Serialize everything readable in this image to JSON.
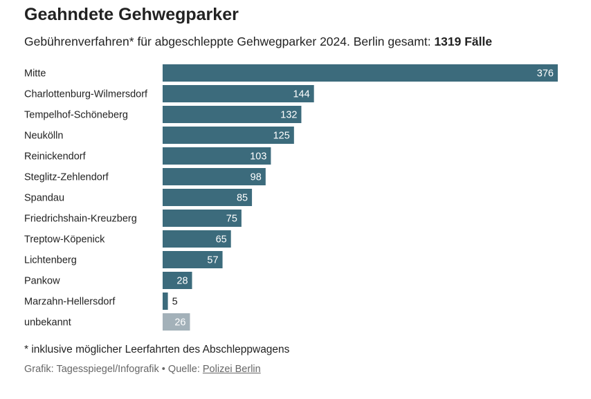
{
  "chart_data": {
    "type": "bar",
    "orientation": "horizontal",
    "title": "Geahndete Gehwegparker",
    "subtitle_prefix": "Gebührenverfahren* für abgeschleppte Gehwegparker 2024. Berlin gesamt: ",
    "subtitle_total": "1319 Fälle",
    "categories": [
      "Mitte",
      "Charlottenburg-Wilmersdorf",
      "Tempelhof-Schöneberg",
      "Neukölln",
      "Reinickendorf",
      "Steglitz-Zehlendorf",
      "Spandau",
      "Friedrichshain-Kreuzberg",
      "Treptow-Köpenick",
      "Lichtenberg",
      "Pankow",
      "Marzahn-Hellersdorf",
      "unbekannt"
    ],
    "values": [
      376,
      144,
      132,
      125,
      103,
      98,
      85,
      75,
      65,
      57,
      28,
      5,
      26
    ],
    "xlim": [
      0,
      376
    ],
    "colors": {
      "bar": "#3c6b7c",
      "bar_unknown": "#a3b1b9",
      "label_inside": "#ffffff",
      "label_outside": "#222222"
    },
    "grid": false
  },
  "footnote": "* inklusive möglicher Leerfahrten des Abschleppwagens",
  "credit": {
    "prefix": "Grafik: Tagesspiegel/Infografik • Quelle: ",
    "link": "Polizei Berlin"
  }
}
